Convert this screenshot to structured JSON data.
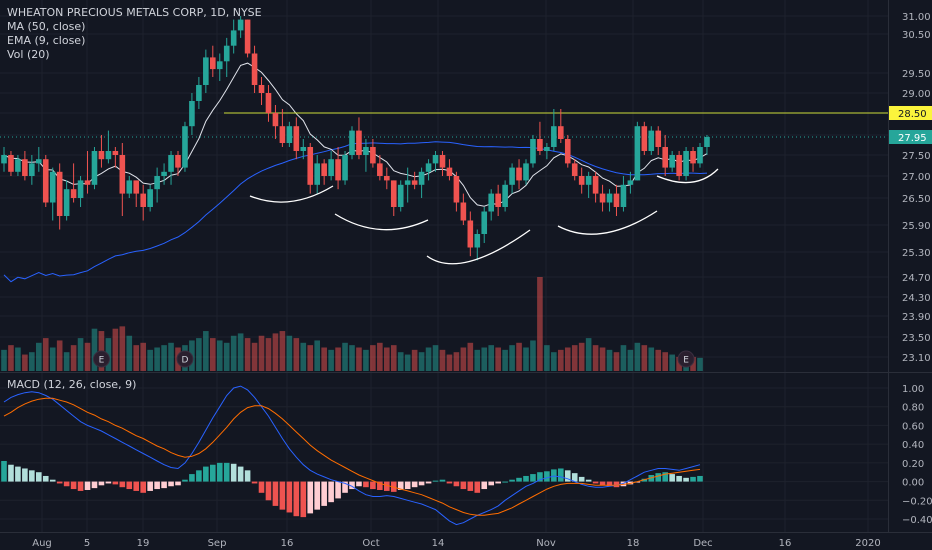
{
  "header": {
    "title": "WHEATON PRECIOUS METALS CORP, 1D, NYSE",
    "indicators": [
      "MA (50, close)",
      "EMA (9, close)",
      "Vol (20)"
    ],
    "macd_label": "MACD (12, 26, close, 9)"
  },
  "chart_data": [
    {
      "type": "candlestick",
      "title": "WHEATON PRECIOUS METALS CORP, 1D, NYSE",
      "x_ticks": [
        "Aug",
        "5",
        "19",
        "Sep",
        "16",
        "Oct",
        "14",
        "Nov",
        "18",
        "Dec",
        "16",
        "2020"
      ],
      "y_ticks": [
        31.0,
        30.5,
        29.5,
        29.0,
        28.5,
        28.0,
        27.5,
        27.0,
        26.5,
        25.9,
        25.3,
        24.7,
        24.3,
        23.9,
        23.5,
        23.1
      ],
      "y_tick_labels": [
        "31.00",
        "30.50",
        "29.50",
        "29.00",
        "28.50",
        "28.00",
        "27.50",
        "27.00",
        "26.50",
        "25.90",
        "25.30",
        "24.70",
        "24.30",
        "23.90",
        "23.50",
        "23.10"
      ],
      "horizontal_line": 28.5,
      "last_price": 27.95,
      "price_labels": [
        "28.50",
        "27.95"
      ],
      "candles": [
        {
          "o": 27.3,
          "h": 27.7,
          "l": 27.1,
          "c": 27.5
        },
        {
          "o": 27.5,
          "h": 27.6,
          "l": 27.0,
          "c": 27.1
        },
        {
          "o": 27.1,
          "h": 27.5,
          "l": 27.0,
          "c": 27.4
        },
        {
          "o": 27.4,
          "h": 27.6,
          "l": 26.9,
          "c": 27.0
        },
        {
          "o": 27.0,
          "h": 27.5,
          "l": 26.8,
          "c": 27.3
        },
        {
          "o": 27.3,
          "h": 27.7,
          "l": 27.1,
          "c": 27.4
        },
        {
          "o": 27.4,
          "h": 27.5,
          "l": 26.3,
          "c": 26.4
        },
        {
          "o": 26.4,
          "h": 27.2,
          "l": 26.0,
          "c": 27.1
        },
        {
          "o": 27.1,
          "h": 27.3,
          "l": 25.8,
          "c": 26.1
        },
        {
          "o": 26.1,
          "h": 26.9,
          "l": 26.0,
          "c": 26.7
        },
        {
          "o": 26.7,
          "h": 27.3,
          "l": 26.4,
          "c": 26.5
        },
        {
          "o": 26.5,
          "h": 27.0,
          "l": 26.3,
          "c": 26.9
        },
        {
          "o": 26.9,
          "h": 27.6,
          "l": 26.6,
          "c": 26.8
        },
        {
          "o": 26.8,
          "h": 27.7,
          "l": 26.7,
          "c": 27.6
        },
        {
          "o": 27.6,
          "h": 28.0,
          "l": 27.2,
          "c": 27.4
        },
        {
          "o": 27.4,
          "h": 28.1,
          "l": 27.3,
          "c": 27.6
        },
        {
          "o": 27.6,
          "h": 27.7,
          "l": 27.2,
          "c": 27.5
        },
        {
          "o": 27.5,
          "h": 27.8,
          "l": 26.1,
          "c": 26.6
        },
        {
          "o": 26.6,
          "h": 27.0,
          "l": 26.5,
          "c": 26.9
        },
        {
          "o": 26.9,
          "h": 26.9,
          "l": 26.3,
          "c": 26.6
        },
        {
          "o": 26.6,
          "h": 26.8,
          "l": 26.0,
          "c": 26.3
        },
        {
          "o": 26.3,
          "h": 26.8,
          "l": 26.2,
          "c": 26.7
        },
        {
          "o": 26.7,
          "h": 27.2,
          "l": 26.4,
          "c": 27.0
        },
        {
          "o": 27.0,
          "h": 27.3,
          "l": 26.8,
          "c": 27.1
        },
        {
          "o": 27.1,
          "h": 27.6,
          "l": 26.8,
          "c": 27.5
        },
        {
          "o": 27.5,
          "h": 27.6,
          "l": 27.0,
          "c": 27.2
        },
        {
          "o": 27.2,
          "h": 28.3,
          "l": 27.1,
          "c": 28.2
        },
        {
          "o": 28.2,
          "h": 29.0,
          "l": 28.0,
          "c": 28.8
        },
        {
          "o": 28.8,
          "h": 29.4,
          "l": 28.6,
          "c": 29.2
        },
        {
          "o": 29.2,
          "h": 30.1,
          "l": 29.0,
          "c": 29.9
        },
        {
          "o": 29.9,
          "h": 30.2,
          "l": 29.4,
          "c": 29.6
        },
        {
          "o": 29.6,
          "h": 30.0,
          "l": 29.3,
          "c": 29.8
        },
        {
          "o": 29.8,
          "h": 30.4,
          "l": 29.4,
          "c": 30.2
        },
        {
          "o": 30.2,
          "h": 30.9,
          "l": 30.0,
          "c": 30.6
        },
        {
          "o": 30.6,
          "h": 31.0,
          "l": 30.4,
          "c": 30.9
        },
        {
          "o": 30.9,
          "h": 30.9,
          "l": 29.9,
          "c": 30.0
        },
        {
          "o": 30.0,
          "h": 30.2,
          "l": 29.0,
          "c": 29.2
        },
        {
          "o": 29.2,
          "h": 29.4,
          "l": 28.7,
          "c": 29.0
        },
        {
          "o": 29.0,
          "h": 29.2,
          "l": 28.3,
          "c": 28.5
        },
        {
          "o": 28.5,
          "h": 28.7,
          "l": 27.9,
          "c": 28.2
        },
        {
          "o": 28.2,
          "h": 28.6,
          "l": 27.7,
          "c": 27.8
        },
        {
          "o": 27.8,
          "h": 28.3,
          "l": 27.7,
          "c": 28.2
        },
        {
          "o": 28.2,
          "h": 28.4,
          "l": 27.4,
          "c": 27.6
        },
        {
          "o": 27.6,
          "h": 27.9,
          "l": 27.4,
          "c": 27.7
        },
        {
          "o": 27.7,
          "h": 27.8,
          "l": 26.6,
          "c": 26.8
        },
        {
          "o": 26.8,
          "h": 27.5,
          "l": 26.6,
          "c": 27.3
        },
        {
          "o": 27.3,
          "h": 27.4,
          "l": 26.8,
          "c": 27.0
        },
        {
          "o": 27.0,
          "h": 27.6,
          "l": 26.9,
          "c": 27.4
        },
        {
          "o": 27.4,
          "h": 27.7,
          "l": 26.7,
          "c": 26.9
        },
        {
          "o": 26.9,
          "h": 27.6,
          "l": 26.8,
          "c": 27.5
        },
        {
          "o": 27.5,
          "h": 28.2,
          "l": 27.4,
          "c": 28.1
        },
        {
          "o": 28.1,
          "h": 28.4,
          "l": 27.4,
          "c": 27.5
        },
        {
          "o": 27.5,
          "h": 27.9,
          "l": 27.1,
          "c": 27.7
        },
        {
          "o": 27.7,
          "h": 27.9,
          "l": 27.2,
          "c": 27.3
        },
        {
          "o": 27.3,
          "h": 27.5,
          "l": 26.9,
          "c": 27.0
        },
        {
          "o": 27.0,
          "h": 27.2,
          "l": 26.7,
          "c": 26.9
        },
        {
          "o": 26.9,
          "h": 26.9,
          "l": 26.1,
          "c": 26.3
        },
        {
          "o": 26.3,
          "h": 26.9,
          "l": 26.2,
          "c": 26.8
        },
        {
          "o": 26.8,
          "h": 27.2,
          "l": 26.4,
          "c": 26.9
        },
        {
          "o": 26.9,
          "h": 27.1,
          "l": 26.7,
          "c": 26.8
        },
        {
          "o": 26.8,
          "h": 27.2,
          "l": 26.5,
          "c": 27.1
        },
        {
          "o": 27.1,
          "h": 27.4,
          "l": 26.9,
          "c": 27.3
        },
        {
          "o": 27.3,
          "h": 27.6,
          "l": 27.1,
          "c": 27.5
        },
        {
          "o": 27.5,
          "h": 27.6,
          "l": 27.0,
          "c": 27.2
        },
        {
          "o": 27.2,
          "h": 27.4,
          "l": 26.9,
          "c": 27.0
        },
        {
          "o": 27.0,
          "h": 27.1,
          "l": 26.2,
          "c": 26.4
        },
        {
          "o": 26.4,
          "h": 26.6,
          "l": 25.9,
          "c": 26.0
        },
        {
          "o": 26.0,
          "h": 26.2,
          "l": 25.2,
          "c": 25.4
        },
        {
          "o": 25.4,
          "h": 25.8,
          "l": 25.1,
          "c": 25.7
        },
        {
          "o": 25.7,
          "h": 26.3,
          "l": 25.5,
          "c": 26.2
        },
        {
          "o": 26.2,
          "h": 26.7,
          "l": 26.0,
          "c": 26.6
        },
        {
          "o": 26.6,
          "h": 26.8,
          "l": 26.1,
          "c": 26.3
        },
        {
          "o": 26.3,
          "h": 26.9,
          "l": 26.2,
          "c": 26.8
        },
        {
          "o": 26.8,
          "h": 27.3,
          "l": 26.6,
          "c": 27.2
        },
        {
          "o": 27.2,
          "h": 27.4,
          "l": 26.7,
          "c": 26.9
        },
        {
          "o": 26.9,
          "h": 27.4,
          "l": 26.8,
          "c": 27.3
        },
        {
          "o": 27.3,
          "h": 28.0,
          "l": 27.2,
          "c": 27.9
        },
        {
          "o": 27.9,
          "h": 28.3,
          "l": 27.5,
          "c": 27.6
        },
        {
          "o": 27.6,
          "h": 27.8,
          "l": 27.4,
          "c": 27.7
        },
        {
          "o": 27.7,
          "h": 28.6,
          "l": 27.6,
          "c": 28.2
        },
        {
          "o": 28.2,
          "h": 28.6,
          "l": 27.8,
          "c": 27.9
        },
        {
          "o": 27.9,
          "h": 28.0,
          "l": 27.2,
          "c": 27.3
        },
        {
          "o": 27.3,
          "h": 27.4,
          "l": 26.9,
          "c": 27.0
        },
        {
          "o": 27.0,
          "h": 27.2,
          "l": 26.6,
          "c": 26.8
        },
        {
          "o": 26.8,
          "h": 27.1,
          "l": 26.5,
          "c": 27.0
        },
        {
          "o": 27.0,
          "h": 27.1,
          "l": 26.4,
          "c": 26.6
        },
        {
          "o": 26.6,
          "h": 26.8,
          "l": 26.2,
          "c": 26.4
        },
        {
          "o": 26.4,
          "h": 26.7,
          "l": 26.2,
          "c": 26.6
        },
        {
          "o": 26.6,
          "h": 26.8,
          "l": 26.1,
          "c": 26.3
        },
        {
          "o": 26.3,
          "h": 27.0,
          "l": 26.2,
          "c": 26.8
        },
        {
          "o": 26.8,
          "h": 27.1,
          "l": 26.6,
          "c": 26.9
        },
        {
          "o": 26.9,
          "h": 28.3,
          "l": 26.9,
          "c": 28.2
        },
        {
          "o": 28.2,
          "h": 28.3,
          "l": 27.5,
          "c": 27.6
        },
        {
          "o": 27.6,
          "h": 28.2,
          "l": 27.5,
          "c": 28.1
        },
        {
          "o": 28.1,
          "h": 28.2,
          "l": 27.5,
          "c": 27.7
        },
        {
          "o": 27.7,
          "h": 28.0,
          "l": 27.0,
          "c": 27.2
        },
        {
          "o": 27.2,
          "h": 27.6,
          "l": 27.1,
          "c": 27.5
        },
        {
          "o": 27.5,
          "h": 27.6,
          "l": 26.9,
          "c": 27.0
        },
        {
          "o": 27.0,
          "h": 27.7,
          "l": 26.9,
          "c": 27.6
        },
        {
          "o": 27.6,
          "h": 27.7,
          "l": 27.1,
          "c": 27.3
        },
        {
          "o": 27.3,
          "h": 27.8,
          "l": 27.2,
          "c": 27.7
        },
        {
          "o": 27.7,
          "h": 28.0,
          "l": 27.5,
          "c": 27.95
        }
      ],
      "volumes": [
        0.45,
        0.55,
        0.5,
        0.35,
        0.4,
        0.6,
        0.7,
        0.5,
        0.65,
        0.4,
        0.55,
        0.7,
        0.6,
        0.9,
        0.85,
        0.7,
        0.9,
        0.95,
        0.75,
        0.55,
        0.6,
        0.45,
        0.5,
        0.55,
        0.6,
        0.5,
        0.55,
        0.65,
        0.7,
        0.85,
        0.7,
        0.65,
        0.6,
        0.75,
        0.8,
        0.7,
        0.6,
        0.75,
        0.7,
        0.8,
        0.85,
        0.75,
        0.7,
        0.6,
        0.55,
        0.65,
        0.5,
        0.45,
        0.5,
        0.6,
        0.55,
        0.5,
        0.45,
        0.55,
        0.6,
        0.5,
        0.55,
        0.4,
        0.35,
        0.45,
        0.4,
        0.5,
        0.55,
        0.45,
        0.35,
        0.4,
        0.5,
        0.6,
        0.45,
        0.5,
        0.55,
        0.5,
        0.45,
        0.55,
        0.6,
        0.5,
        0.65,
        2.0,
        0.55,
        0.4,
        0.45,
        0.5,
        0.55,
        0.6,
        0.7,
        0.55,
        0.5,
        0.45,
        0.4,
        0.55,
        0.45,
        0.6,
        0.55,
        0.5,
        0.45,
        0.4,
        0.35,
        0.3,
        0.35,
        0.3,
        0.28
      ],
      "events": [
        {
          "label": "E",
          "index": 14
        },
        {
          "label": "D",
          "index": 26
        },
        {
          "label": "E",
          "index": 98
        }
      ],
      "annotations": [
        "curve",
        "curve",
        "curve",
        "curve",
        "curve",
        "curve"
      ]
    },
    {
      "type": "macd",
      "title": "MACD (12, 26, close, 9)",
      "y_ticks": [
        1.0,
        0.8,
        0.6,
        0.4,
        0.2,
        0.0,
        -0.2,
        -0.4
      ],
      "y_tick_labels": [
        "1.00",
        "0.80",
        "0.60",
        "0.40",
        "0.20",
        "0.00",
        "−0.20",
        "−0.40"
      ],
      "ylim": [
        -0.55,
        1.1
      ],
      "histogram": [
        0.22,
        0.18,
        0.16,
        0.14,
        0.12,
        0.1,
        0.06,
        0.02,
        -0.02,
        -0.05,
        -0.08,
        -0.1,
        -0.09,
        -0.07,
        -0.04,
        -0.02,
        -0.03,
        -0.06,
        -0.08,
        -0.1,
        -0.12,
        -0.1,
        -0.08,
        -0.07,
        -0.05,
        -0.04,
        0.02,
        0.08,
        0.12,
        0.16,
        0.18,
        0.2,
        0.2,
        0.19,
        0.16,
        0.12,
        -0.02,
        -0.12,
        -0.2,
        -0.26,
        -0.3,
        -0.33,
        -0.37,
        -0.38,
        -0.34,
        -0.3,
        -0.26,
        -0.22,
        -0.18,
        -0.12,
        -0.08,
        -0.05,
        -0.06,
        -0.08,
        -0.09,
        -0.1,
        -0.11,
        -0.09,
        -0.08,
        -0.06,
        -0.04,
        -0.02,
        0.01,
        0.02,
        -0.02,
        -0.05,
        -0.08,
        -0.1,
        -0.12,
        -0.08,
        -0.04,
        -0.02,
        0.0,
        0.02,
        0.04,
        0.06,
        0.08,
        0.1,
        0.11,
        0.13,
        0.14,
        0.12,
        0.09,
        0.05,
        0.02,
        -0.02,
        -0.04,
        -0.05,
        -0.06,
        -0.05,
        -0.03,
        -0.01,
        0.03,
        0.07,
        0.09,
        0.1,
        0.08,
        0.06,
        0.04,
        0.05,
        0.06
      ],
      "macd_line": [
        0.85,
        0.9,
        0.93,
        0.95,
        0.96,
        0.95,
        0.92,
        0.88,
        0.82,
        0.76,
        0.7,
        0.64,
        0.6,
        0.57,
        0.54,
        0.5,
        0.46,
        0.42,
        0.38,
        0.34,
        0.3,
        0.26,
        0.22,
        0.18,
        0.15,
        0.14,
        0.2,
        0.3,
        0.42,
        0.55,
        0.68,
        0.8,
        0.92,
        1.0,
        1.02,
        0.98,
        0.9,
        0.8,
        0.7,
        0.58,
        0.46,
        0.35,
        0.26,
        0.18,
        0.12,
        0.08,
        0.05,
        0.02,
        0.0,
        -0.02,
        -0.05,
        -0.1,
        -0.14,
        -0.16,
        -0.16,
        -0.15,
        -0.16,
        -0.18,
        -0.2,
        -0.22,
        -0.24,
        -0.27,
        -0.3,
        -0.36,
        -0.42,
        -0.46,
        -0.44,
        -0.4,
        -0.36,
        -0.33,
        -0.3,
        -0.26,
        -0.2,
        -0.15,
        -0.1,
        -0.05,
        -0.02,
        0.02,
        0.04,
        0.06,
        0.05,
        0.03,
        0.0,
        -0.03,
        -0.05,
        -0.06,
        -0.06,
        -0.05,
        -0.04,
        -0.02,
        0.02,
        0.06,
        0.1,
        0.12,
        0.14,
        0.14,
        0.13,
        0.12,
        0.14,
        0.16,
        0.18
      ],
      "signal_line": [
        0.7,
        0.74,
        0.79,
        0.83,
        0.86,
        0.88,
        0.89,
        0.89,
        0.87,
        0.85,
        0.82,
        0.78,
        0.74,
        0.71,
        0.67,
        0.64,
        0.6,
        0.57,
        0.53,
        0.49,
        0.46,
        0.42,
        0.38,
        0.35,
        0.31,
        0.28,
        0.26,
        0.27,
        0.3,
        0.35,
        0.42,
        0.5,
        0.58,
        0.67,
        0.74,
        0.79,
        0.81,
        0.81,
        0.78,
        0.73,
        0.67,
        0.6,
        0.53,
        0.46,
        0.39,
        0.33,
        0.28,
        0.23,
        0.19,
        0.15,
        0.11,
        0.07,
        0.04,
        0.01,
        -0.02,
        -0.04,
        -0.06,
        -0.08,
        -0.1,
        -0.12,
        -0.14,
        -0.17,
        -0.2,
        -0.23,
        -0.27,
        -0.3,
        -0.33,
        -0.35,
        -0.36,
        -0.36,
        -0.35,
        -0.34,
        -0.31,
        -0.28,
        -0.24,
        -0.2,
        -0.16,
        -0.12,
        -0.08,
        -0.05,
        -0.03,
        -0.02,
        -0.02,
        -0.02,
        -0.03,
        -0.04,
        -0.04,
        -0.04,
        -0.04,
        -0.03,
        -0.02,
        0.0,
        0.02,
        0.04,
        0.06,
        0.08,
        0.09,
        0.1,
        0.11,
        0.12,
        0.13
      ]
    }
  ],
  "colors": {
    "background": "#131722",
    "up": "#26a69a",
    "down": "#ef5350",
    "grid": "#1e222d",
    "text": "#b2b5be",
    "ma50": "#2962ff",
    "ema9": "#e0e3eb",
    "hline": "#cddc39",
    "macd_blue": "#2962ff",
    "signal_orange": "#ff6d00"
  }
}
